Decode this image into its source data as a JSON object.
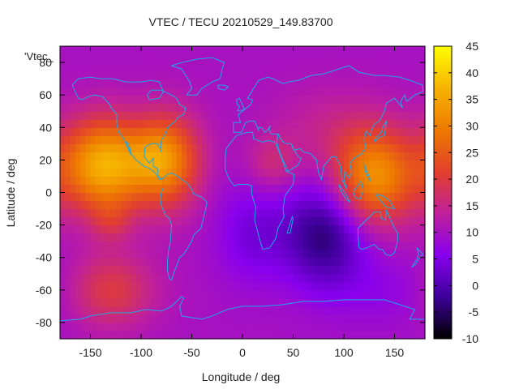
{
  "chart_data": {
    "type": "heatmap",
    "title": "VTEC / TECU 20210529_149.83700",
    "xlabel": "Longitude / deg",
    "ylabel": "Latitude / deg",
    "key_label": "'Vtec_",
    "xlim": [
      -180,
      180
    ],
    "ylim": [
      -90,
      90
    ],
    "xticks": [
      -150,
      -100,
      -50,
      0,
      50,
      100,
      150
    ],
    "yticks": [
      -80,
      -60,
      -40,
      -20,
      0,
      20,
      40,
      60,
      80
    ],
    "colorbar": {
      "range": [
        -10,
        45
      ],
      "ticks": [
        -10,
        -5,
        0,
        5,
        10,
        15,
        20,
        25,
        30,
        35,
        40,
        45
      ],
      "palette": [
        "#000000",
        "#3d0099",
        "#8800ee",
        "#c0209a",
        "#e2402c",
        "#ee7a00",
        "#f6b300",
        "#ffff00"
      ]
    },
    "coastline_color": "#1fa7e8",
    "grid": false,
    "blobs": [
      {
        "lon": -135,
        "lat": 17,
        "slon": 32,
        "slat": 20,
        "amp": 27
      },
      {
        "lon": -72,
        "lat": 20,
        "slon": 22,
        "slat": 20,
        "amp": 18
      },
      {
        "lon": -90,
        "lat": 22,
        "slon": 15,
        "slat": 12,
        "amp": 4
      },
      {
        "lon": 130,
        "lat": 10,
        "slon": 28,
        "slat": 20,
        "amp": 22
      },
      {
        "lon": 30,
        "lat": 18,
        "slon": 18,
        "slat": 12,
        "amp": 6
      },
      {
        "lon": 85,
        "lat": 40,
        "slon": 40,
        "slat": 18,
        "amp": 4
      },
      {
        "lon": -130,
        "lat": -60,
        "slon": 30,
        "slat": 16,
        "amp": 10
      },
      {
        "lon": -130,
        "lat": -18,
        "slon": 14,
        "slat": 9,
        "amp": 5
      },
      {
        "lon": 80,
        "lat": -26,
        "slon": 28,
        "slat": 22,
        "amp": -14
      },
      {
        "lon": 10,
        "lat": -25,
        "slon": 25,
        "slat": 22,
        "amp": -6
      },
      {
        "lon": 140,
        "lat": -60,
        "slon": 40,
        "slat": 16,
        "amp": -3
      }
    ],
    "base_value": 10
  }
}
